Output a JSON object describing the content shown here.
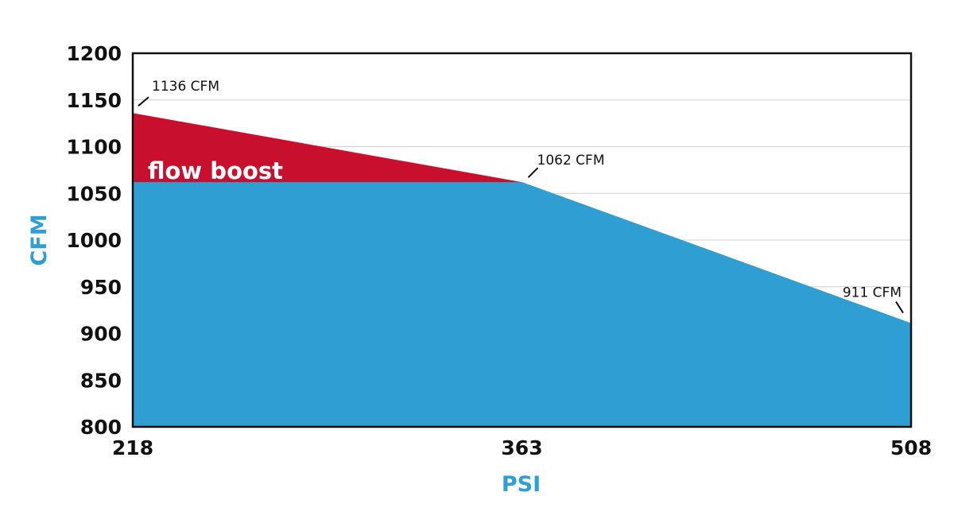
{
  "chart_data": {
    "type": "area",
    "title": "",
    "xlabel": "PSI",
    "ylabel": "CFM",
    "x": [
      218,
      363,
      508
    ],
    "xticks": [
      "218",
      "363",
      "508"
    ],
    "xlim": [
      218,
      508
    ],
    "ylim": [
      800,
      1200
    ],
    "yticks": [
      "800",
      "850",
      "900",
      "950",
      "1000",
      "1050",
      "1100",
      "1150",
      "1200"
    ],
    "grid": true,
    "series": [
      {
        "values": [
          1062,
          1062,
          911
        ]
      },
      {
        "values": [
          1136,
          1062,
          911
        ]
      }
    ],
    "region_label": "flow boost",
    "annotations": [
      {
        "x": 218,
        "y": 1136,
        "text": "1136 CFM"
      },
      {
        "x": 363,
        "y": 1062,
        "text": "1062 CFM"
      },
      {
        "x": 508,
        "y": 911,
        "text": "911 CFM"
      }
    ],
    "colors": {
      "base": "#2f9fd3",
      "boost": "#c8102e",
      "axis_title": "#2f9fd3"
    }
  }
}
